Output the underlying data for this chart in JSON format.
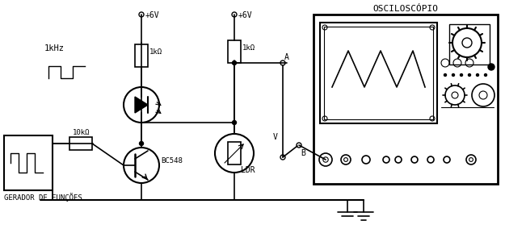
{
  "title": "OSCILOSCÓPIO",
  "bottom_label": "GERADOR DE FUNÇÕES",
  "bg_color": "#ffffff",
  "line_color": "#000000",
  "freq_label": "1kHz",
  "r1_label": "1kΩ",
  "r2_label": "1kΩ",
  "r3_label": "10kΩ",
  "transistor_label": "BC548",
  "ldr_label": "LDR",
  "vcc1_label": "+6V",
  "vcc2_label": "+6V",
  "point_a": "A",
  "point_b": "B",
  "point_v": "V",
  "figsize": [
    6.25,
    2.84
  ],
  "dpi": 100
}
